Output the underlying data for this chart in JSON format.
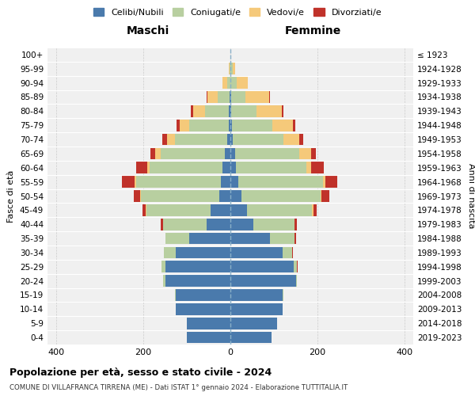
{
  "age_groups": [
    "100+",
    "95-99",
    "90-94",
    "85-89",
    "80-84",
    "75-79",
    "70-74",
    "65-69",
    "60-64",
    "55-59",
    "50-54",
    "45-49",
    "40-44",
    "35-39",
    "30-34",
    "25-29",
    "20-24",
    "15-19",
    "10-14",
    "5-9",
    "0-4"
  ],
  "birth_years": [
    "≤ 1923",
    "1924-1928",
    "1929-1933",
    "1934-1938",
    "1939-1943",
    "1944-1948",
    "1949-1953",
    "1954-1958",
    "1959-1963",
    "1964-1968",
    "1969-1973",
    "1974-1978",
    "1979-1983",
    "1984-1988",
    "1989-1993",
    "1994-1998",
    "1999-2003",
    "2004-2008",
    "2009-2013",
    "2014-2018",
    "2019-2023"
  ],
  "male": {
    "celibi": [
      0,
      0,
      0,
      2,
      3,
      4,
      8,
      12,
      18,
      22,
      25,
      45,
      55,
      95,
      125,
      150,
      150,
      125,
      125,
      100,
      100
    ],
    "coniugati": [
      0,
      2,
      8,
      28,
      55,
      90,
      120,
      148,
      168,
      195,
      180,
      148,
      100,
      55,
      28,
      8,
      5,
      2,
      0,
      0,
      0
    ],
    "vedovi": [
      0,
      2,
      10,
      22,
      28,
      22,
      18,
      12,
      5,
      3,
      2,
      1,
      0,
      0,
      0,
      0,
      0,
      0,
      0,
      0,
      0
    ],
    "divorziati": [
      0,
      0,
      0,
      2,
      5,
      8,
      10,
      12,
      25,
      30,
      15,
      8,
      5,
      0,
      0,
      0,
      0,
      0,
      0,
      0,
      0
    ]
  },
  "female": {
    "nubili": [
      0,
      0,
      0,
      2,
      2,
      4,
      6,
      10,
      12,
      18,
      25,
      38,
      52,
      90,
      120,
      145,
      150,
      120,
      120,
      108,
      95
    ],
    "coniugate": [
      0,
      5,
      15,
      32,
      58,
      92,
      115,
      148,
      162,
      195,
      182,
      150,
      95,
      58,
      22,
      8,
      2,
      2,
      0,
      0,
      0
    ],
    "vedove": [
      0,
      5,
      25,
      55,
      58,
      48,
      38,
      28,
      12,
      5,
      2,
      2,
      0,
      0,
      0,
      0,
      0,
      0,
      0,
      0,
      0
    ],
    "divorziate": [
      0,
      0,
      0,
      2,
      3,
      5,
      8,
      10,
      28,
      28,
      18,
      8,
      5,
      2,
      2,
      2,
      0,
      0,
      0,
      0,
      0
    ]
  },
  "colors": {
    "celibi": "#4a7aac",
    "coniugati": "#b8cfa0",
    "vedovi": "#f5c97a",
    "divorziati": "#c0322a"
  },
  "title": "Popolazione per età, sesso e stato civile - 2024",
  "subtitle": "COMUNE DI VILLAFRANCA TIRRENA (ME) - Dati ISTAT 1° gennaio 2024 - Elaborazione TUTTITALIA.IT",
  "xlabel_left": "Maschi",
  "xlabel_right": "Femmine",
  "ylabel": "Fasce di età",
  "ylabel_right": "Anni di nascita",
  "xlim": 420,
  "legend_labels": [
    "Celibi/Nubili",
    "Coniugati/e",
    "Vedovi/e",
    "Divorziati/e"
  ],
  "background_color": "#f0f0f0"
}
